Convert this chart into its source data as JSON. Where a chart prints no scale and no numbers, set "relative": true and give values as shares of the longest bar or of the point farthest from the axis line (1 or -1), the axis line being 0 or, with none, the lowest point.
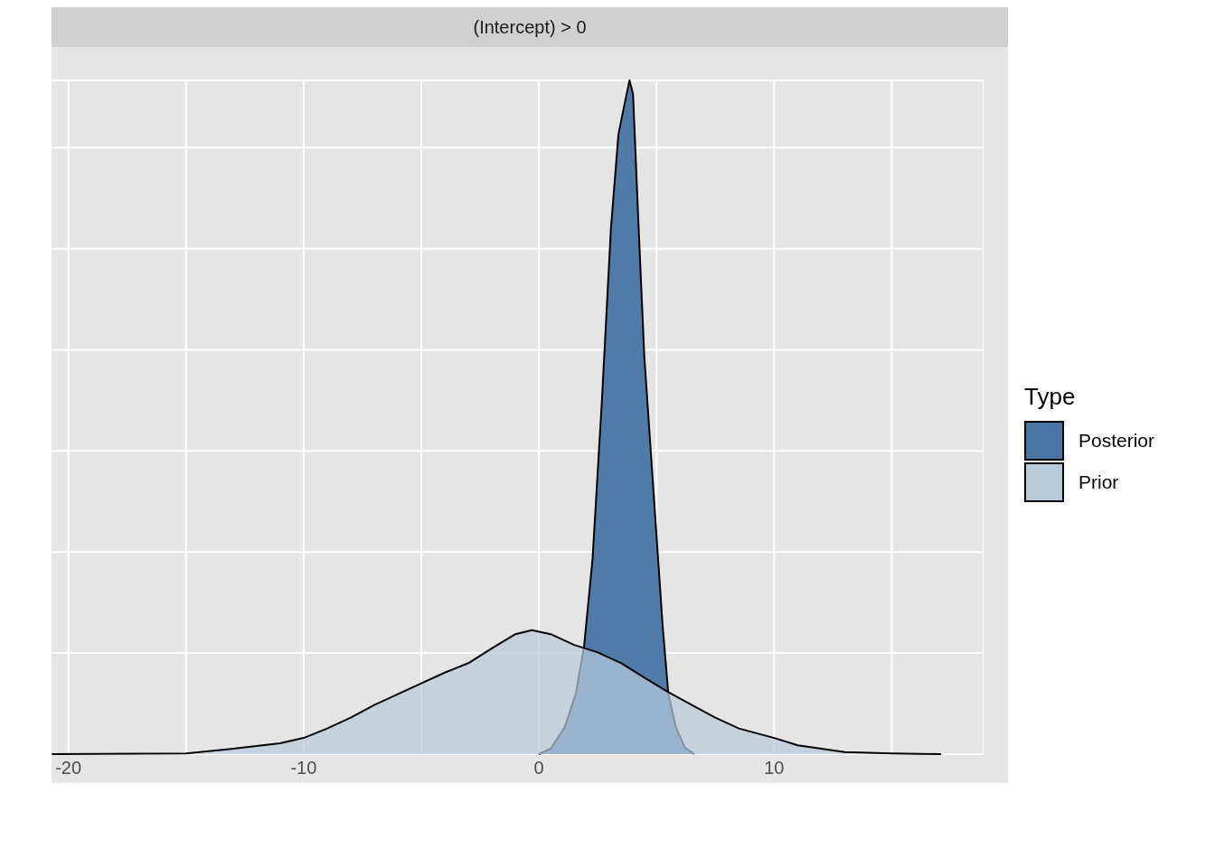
{
  "chart_data": {
    "type": "area",
    "title": "(Intercept) > 0",
    "relative": true,
    "legend_title": "Type",
    "legend": "right",
    "grid": true,
    "xlim": [
      -22.6,
      18.9
    ],
    "xticks": [
      -20,
      {
        "value": -15,
        "label": null
      },
      -10,
      {
        "value": -5,
        "label": null
      },
      0,
      {
        "value": 5,
        "label": null
      },
      10,
      {
        "value": 15,
        "label": null
      }
    ],
    "series": [
      {
        "name": "Posterior",
        "color": "#4875a4",
        "x": [
          0,
          0.5,
          1.1,
          1.57,
          1.92,
          2.28,
          2.67,
          3.06,
          3.38,
          3.61,
          3.85,
          4.0,
          4.24,
          4.48,
          4.87,
          5.26,
          5.5,
          5.82,
          6.2,
          6.6
        ],
        "values": [
          0,
          0.008,
          0.04,
          0.09,
          0.16,
          0.29,
          0.52,
          0.78,
          0.92,
          0.96,
          1,
          0.98,
          0.78,
          0.59,
          0.39,
          0.19,
          0.09,
          0.04,
          0.01,
          0
        ]
      },
      {
        "name": "Prior",
        "color": "#b8cbdb",
        "x": [
          -20.7,
          -15,
          -13,
          -11,
          -10,
          -9,
          -8,
          -7,
          -6,
          -5,
          -4,
          -3,
          -2,
          -1,
          -0.3,
          0.5,
          1.5,
          2.5,
          3.5,
          4.5,
          5.5,
          6.5,
          7.5,
          8.5,
          10,
          11,
          12,
          13,
          15,
          17.1
        ],
        "values": [
          0,
          0.001,
          0.008,
          0.016,
          0.024,
          0.038,
          0.054,
          0.073,
          0.089,
          0.105,
          0.121,
          0.135,
          0.157,
          0.178,
          0.184,
          0.178,
          0.162,
          0.151,
          0.135,
          0.113,
          0.092,
          0.073,
          0.054,
          0.038,
          0.024,
          0.013,
          0.008,
          0.003,
          0.001,
          0
        ]
      }
    ]
  }
}
